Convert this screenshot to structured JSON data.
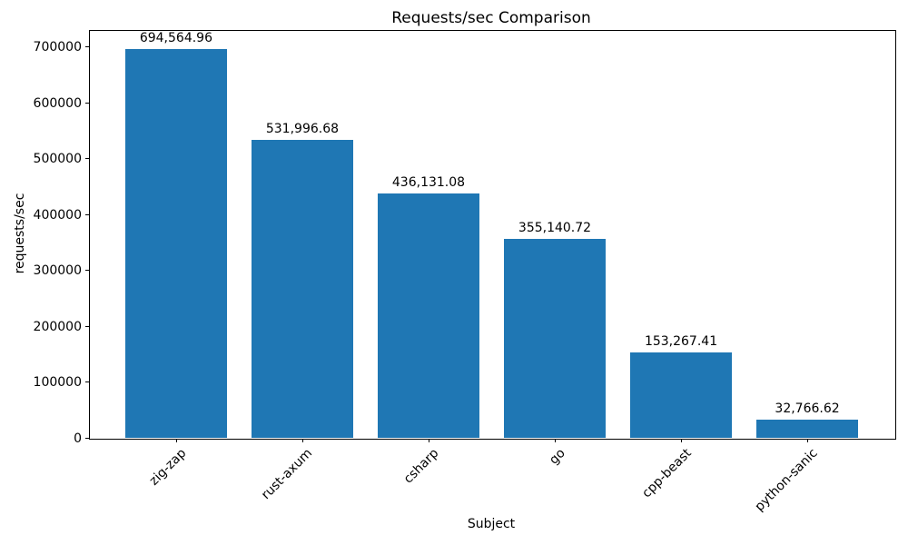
{
  "figure": {
    "title": "Requests/sec Comparison",
    "xlabel": "Subject",
    "ylabel": "requests/sec"
  },
  "chart_data": {
    "type": "bar",
    "title": "Requests/sec Comparison",
    "xlabel": "Subject",
    "ylabel": "requests/sec",
    "categories": [
      "zig-zap",
      "rust-axum",
      "csharp",
      "go",
      "cpp-beast",
      "python-sanic"
    ],
    "values": [
      694564.96,
      531996.68,
      436131.08,
      355140.72,
      153267.41,
      32766.62
    ],
    "value_labels": [
      "694,564.96",
      "531,996.68",
      "436,131.08",
      "355,140.72",
      "153,267.41",
      "32,766.62"
    ],
    "yticks": [
      0,
      100000,
      200000,
      300000,
      400000,
      500000,
      600000,
      700000
    ],
    "ytick_labels": [
      "0",
      "100000",
      "200000",
      "300000",
      "400000",
      "500000",
      "600000",
      "700000"
    ],
    "ylim": [
      0,
      729293
    ],
    "bar_color": "#1f77b4",
    "grid": false,
    "legend": null
  }
}
